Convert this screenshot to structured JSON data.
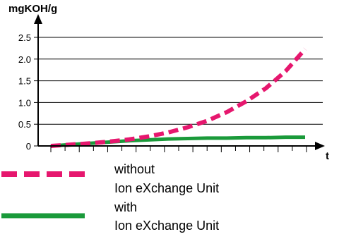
{
  "chart_data": {
    "type": "line",
    "ylabel": "mgKOH/g",
    "xlabel": "t",
    "ylim": [
      0,
      2.5
    ],
    "yticks": [
      "0",
      "0.5",
      "1.0",
      "1.5",
      "2.0",
      "2.5"
    ],
    "ytick_values": [
      0,
      0.5,
      1.0,
      1.5,
      2.0,
      2.5
    ],
    "grid": true,
    "x": [
      0,
      1,
      2,
      3,
      4,
      5,
      6,
      7,
      8,
      9,
      10,
      11,
      12,
      13
    ],
    "series": [
      {
        "name": "without Ion eXchange Unit",
        "name_lines": [
          "without",
          "Ion eXchange Unit"
        ],
        "color": "#e6176e",
        "style": "dashed",
        "values": [
          0.0,
          0.03,
          0.06,
          0.1,
          0.15,
          0.22,
          0.31,
          0.43,
          0.58,
          0.78,
          1.03,
          1.33,
          1.72,
          2.23
        ]
      },
      {
        "name": "with Ion eXchange Unit",
        "name_lines": [
          "with",
          "Ion eXchange Unit"
        ],
        "color": "#1a9a3a",
        "style": "solid",
        "values": [
          0.0,
          0.03,
          0.06,
          0.09,
          0.12,
          0.14,
          0.16,
          0.17,
          0.18,
          0.18,
          0.19,
          0.19,
          0.2,
          0.2
        ]
      }
    ],
    "legend_position": "bottom-left"
  }
}
